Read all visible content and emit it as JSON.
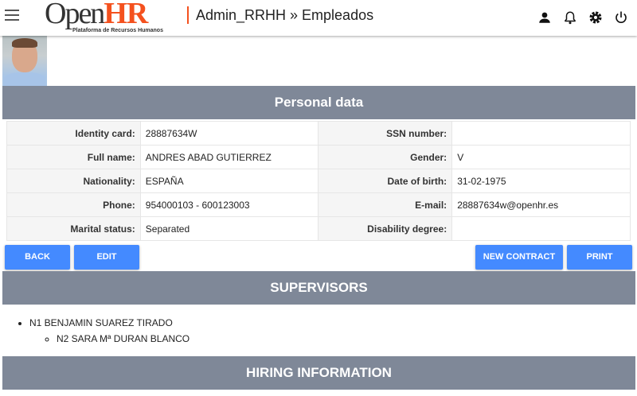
{
  "header": {
    "logo_open": "Open",
    "logo_hr": "HR",
    "logo_sub": "Plataforma de Recursos Humanos",
    "breadcrumb": "Admin_RRHH » Empleados",
    "icons": [
      "user-icon",
      "bell-icon",
      "gear-icon",
      "power-icon"
    ]
  },
  "personal": {
    "title": "Personal data",
    "rows": [
      {
        "l1": "Identity card:",
        "v1": "28887634W",
        "l2": "SSN number:",
        "v2": ""
      },
      {
        "l1": "Full name:",
        "v1": "ANDRES ABAD GUTIERREZ",
        "l2": "Gender:",
        "v2": "V"
      },
      {
        "l1": "Nationality:",
        "v1": "ESPAÑA",
        "l2": "Date of birth:",
        "v2": "31-02-1975"
      },
      {
        "l1": "Phone:",
        "v1": "954000103 - 600123003",
        "l2": "E-mail:",
        "v2": "28887634w@openhr.es"
      },
      {
        "l1": "Marital status:",
        "v1": "Separated",
        "l2": "Disability degree:",
        "v2": ""
      }
    ]
  },
  "buttons": {
    "back": "BACK",
    "edit": "EDIT",
    "new_contract": "NEW CONTRACT",
    "print": "PRINT"
  },
  "supervisors": {
    "title": "SUPERVISORS",
    "n1": "N1 BENJAMIN SUAREZ TIRADO",
    "n2": "N2 SARA Mª DURAN BLANCO"
  },
  "hiring": {
    "title": "HIRING INFORMATION"
  }
}
